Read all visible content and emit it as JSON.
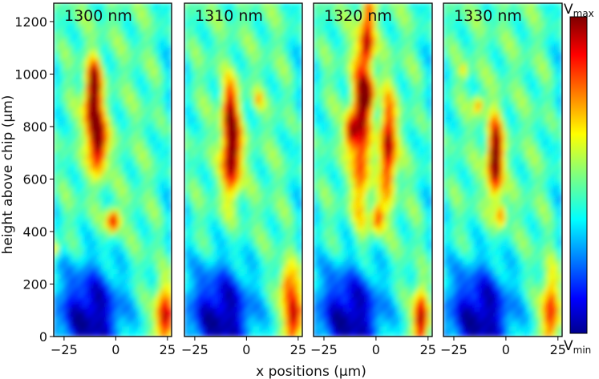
{
  "chart_data": {
    "type": "heatmap",
    "xlabel": "x positions (µm)",
    "ylabel": "height above chip (µm)",
    "xlim": [
      -30,
      27
    ],
    "ylim": [
      0,
      1270
    ],
    "xticks": [
      -25,
      0,
      25
    ],
    "yticks": [
      0,
      200,
      400,
      600,
      800,
      1000,
      1200
    ],
    "colormap": "jet",
    "colorbar": {
      "max_label": "V",
      "max_sub": "max",
      "min_label": "V",
      "min_sub": "min"
    },
    "panels": [
      {
        "title": "1300 nm",
        "hotspots": [
          {
            "x": -11,
            "y": 880,
            "sx": 2.8,
            "sy": 95,
            "a": 0.55
          },
          {
            "x": -8,
            "y": 730,
            "sx": 2.8,
            "sy": 75,
            "a": 0.55
          },
          {
            "x": -10,
            "y": 980,
            "sx": 2.0,
            "sy": 55,
            "a": 0.3
          },
          {
            "x": -1,
            "y": 440,
            "sx": 2.2,
            "sy": 30,
            "a": 0.5
          },
          {
            "x": 24,
            "y": 70,
            "sx": 3.0,
            "sy": 90,
            "a": 0.55
          },
          {
            "x": -29,
            "y": 330,
            "sx": 1.5,
            "sy": 25,
            "a": 0.3
          }
        ]
      },
      {
        "title": "1310 nm",
        "hotspots": [
          {
            "x": -7,
            "y": 700,
            "sx": 3.0,
            "sy": 110,
            "a": 0.65
          },
          {
            "x": -8,
            "y": 880,
            "sx": 2.5,
            "sy": 70,
            "a": 0.35
          },
          {
            "x": 6,
            "y": 900,
            "sx": 1.5,
            "sy": 25,
            "a": 0.2
          },
          {
            "x": 23,
            "y": 80,
            "sx": 3.0,
            "sy": 110,
            "a": 0.55
          },
          {
            "x": 19,
            "y": 200,
            "sx": 2.0,
            "sy": 45,
            "a": 0.25
          }
        ]
      },
      {
        "title": "1320 nm",
        "hotspots": [
          {
            "x": -7,
            "y": 780,
            "sx": 3.0,
            "sy": 230,
            "a": 0.45
          },
          {
            "x": 6,
            "y": 720,
            "sx": 2.6,
            "sy": 130,
            "a": 0.55
          },
          {
            "x": -4,
            "y": 1110,
            "sx": 2.2,
            "sy": 60,
            "a": 0.45
          },
          {
            "x": -12,
            "y": 780,
            "sx": 2.0,
            "sy": 45,
            "a": 0.45
          },
          {
            "x": -4,
            "y": 920,
            "sx": 2.5,
            "sy": 45,
            "a": 0.5
          },
          {
            "x": 1,
            "y": 450,
            "sx": 2.0,
            "sy": 40,
            "a": 0.4
          },
          {
            "x": 22,
            "y": 60,
            "sx": 2.5,
            "sy": 85,
            "a": 0.6
          },
          {
            "x": -3,
            "y": 1240,
            "sx": 2.0,
            "sy": 40,
            "a": 0.3
          }
        ]
      },
      {
        "title": "1330 nm",
        "hotspots": [
          {
            "x": -5,
            "y": 680,
            "sx": 2.4,
            "sy": 100,
            "a": 0.7
          },
          {
            "x": -2,
            "y": 460,
            "sx": 1.6,
            "sy": 30,
            "a": 0.35
          },
          {
            "x": -13,
            "y": 880,
            "sx": 1.8,
            "sy": 25,
            "a": 0.3
          },
          {
            "x": -20,
            "y": 1010,
            "sx": 1.5,
            "sy": 20,
            "a": 0.2
          },
          {
            "x": 22,
            "y": 90,
            "sx": 3.0,
            "sy": 110,
            "a": 0.45
          }
        ]
      }
    ]
  }
}
